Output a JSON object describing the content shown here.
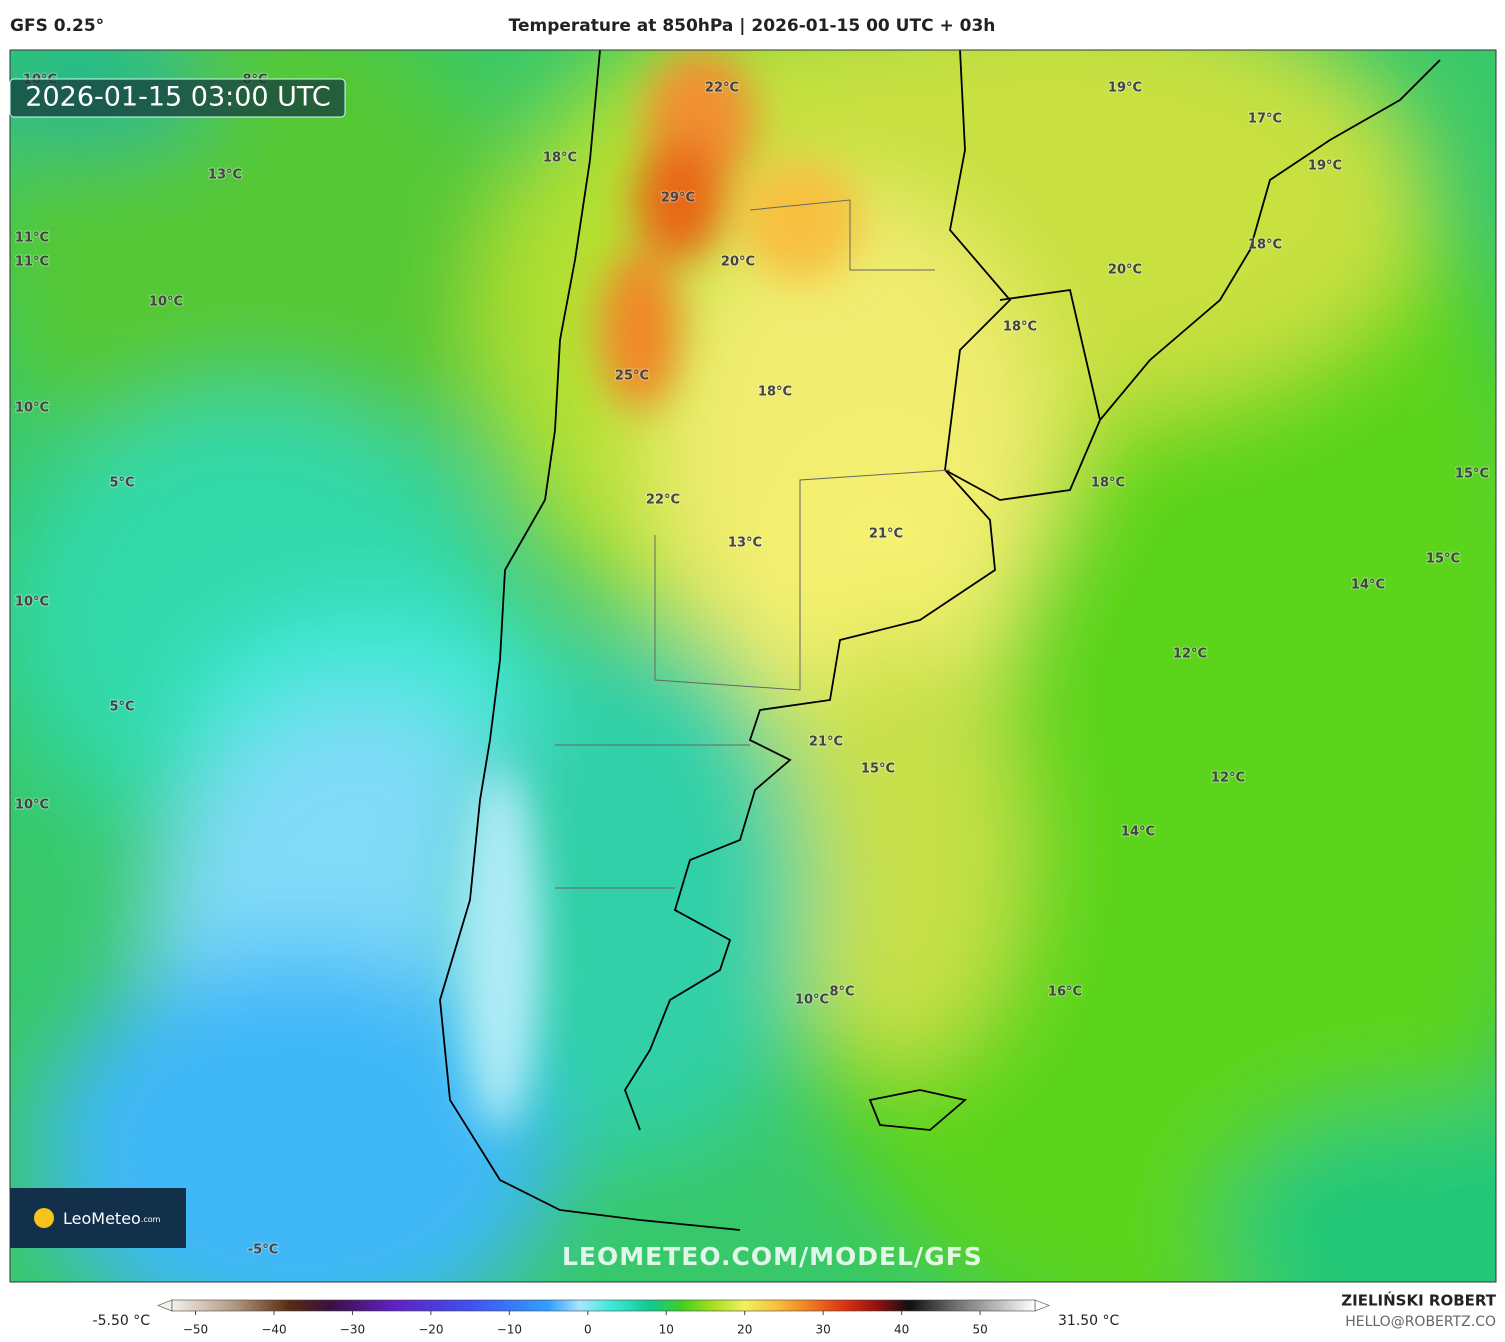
{
  "header": {
    "model": "GFS 0.25°",
    "title": "Temperature at 850hPa | 2026-01-15 00 UTC + 03h"
  },
  "timestamp": "2026-01-15 03:00 UTC",
  "map_labels": [
    "10°C",
    "8°C",
    "22°C",
    "19°C",
    "17°C",
    "18°C",
    "13°C",
    "19°C",
    "29°C",
    "11°C",
    "11°C",
    "18°C",
    "20°C",
    "20°C",
    "10°C",
    "18°C",
    "25°C",
    "18°C",
    "10°C",
    "5°C",
    "18°C",
    "15°C",
    "22°C",
    "21°C",
    "13°C",
    "15°C",
    "14°C",
    "10°C",
    "12°C",
    "5°C",
    "21°C",
    "15°C",
    "12°C",
    "10°C",
    "14°C",
    "10°C",
    "8°C",
    "16°C",
    "-5°C"
  ],
  "logo": {
    "name": "LeoMeteo",
    "suffix": ".com"
  },
  "watermark": "LEOMETEO.COM/MODEL/GFS",
  "colorbar": {
    "min_label": "-5.50 °C",
    "max_label": "31.50 °C",
    "lim": [
      -53,
      57
    ],
    "ticks": [
      {
        "value": -50,
        "label": "−50"
      },
      {
        "value": -40,
        "label": "−40"
      },
      {
        "value": -30,
        "label": "−30"
      },
      {
        "value": -20,
        "label": "−20"
      },
      {
        "value": -10,
        "label": "−10"
      },
      0,
      10,
      20,
      30,
      40,
      50
    ],
    "stops": [
      {
        "value": -53,
        "color": "#f4f0ec"
      },
      {
        "value": -45,
        "color": "#b09880"
      },
      {
        "value": -38,
        "color": "#5a2a10"
      },
      {
        "value": -33,
        "color": "#3a1040"
      },
      {
        "value": -25,
        "color": "#6020c0"
      },
      {
        "value": -15,
        "color": "#4050f0"
      },
      {
        "value": -5,
        "color": "#30a0ff"
      },
      {
        "value": -1,
        "color": "#a8e4ff"
      },
      {
        "value": 3,
        "color": "#40e8d8"
      },
      {
        "value": 8,
        "color": "#10c890"
      },
      {
        "value": 12,
        "color": "#40d020"
      },
      {
        "value": 16,
        "color": "#a8e020"
      },
      {
        "value": 20,
        "color": "#f0f060"
      },
      {
        "value": 24,
        "color": "#f8c040"
      },
      {
        "value": 28,
        "color": "#f08020"
      },
      {
        "value": 33,
        "color": "#d83010"
      },
      {
        "value": 37,
        "color": "#901010"
      },
      {
        "value": 41,
        "color": "#101010"
      },
      {
        "value": 47,
        "color": "#707070"
      },
      {
        "value": 57,
        "color": "#ffffff"
      }
    ]
  },
  "footer": {
    "author": "ZIELIŃSKI ROBERT",
    "email": "HELLO@ROBERTZ.CO"
  }
}
